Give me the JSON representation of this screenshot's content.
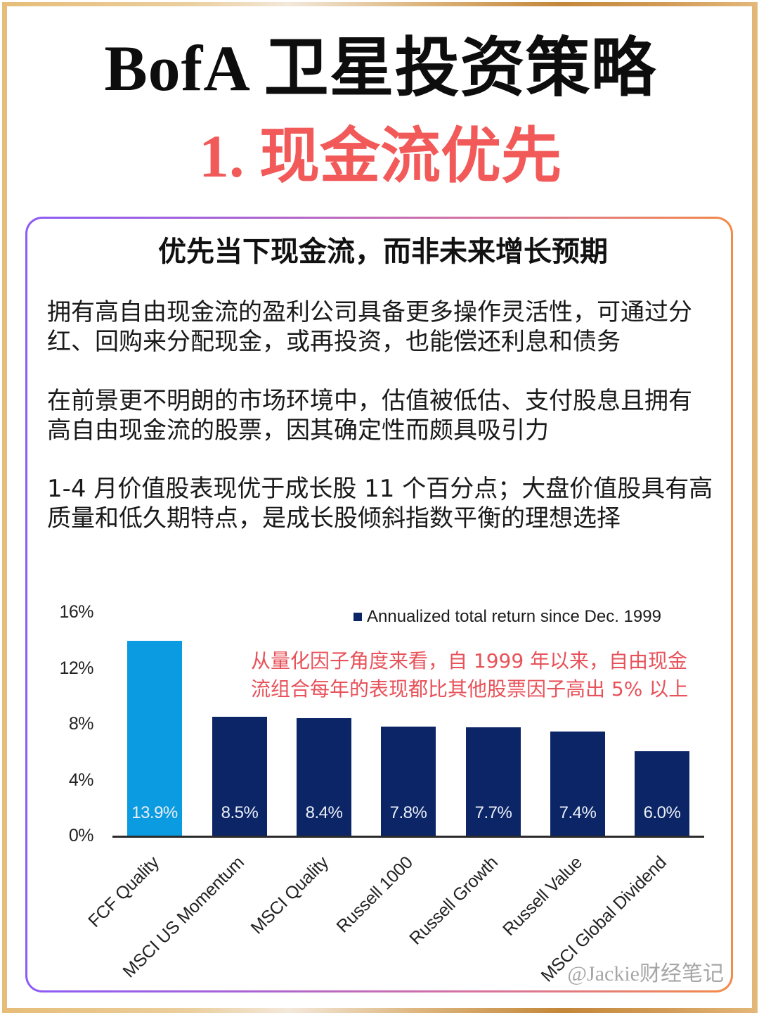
{
  "header": {
    "title": "BofA 卫星投资策略",
    "subtitle": "1. 现金流优先"
  },
  "card": {
    "heading": "优先当下现金流，而非未来增长预期",
    "paragraphs": [
      {
        "lines": [
          "拥有高自由现金流的盈利公司具备更多操作灵活性，可通过分",
          "红、回购来分配现金，或再投资，也能偿还利息和债务"
        ]
      },
      {
        "lines": [
          "在前景更不明朗的市场环境中，估值被低估、支付股息且拥有",
          "高自由现金流的股票，因其确定性而颇具吸引力"
        ]
      },
      {
        "lines": [
          "1-4 月价值股表现优于成长股 11 个百分点；大盘价值股具有高",
          "质量和低久期特点，是成长股倾斜指数平衡的理想选择"
        ]
      }
    ],
    "watermark": "@Jackie财经笔记"
  },
  "colors": {
    "title": "#0d0d0d",
    "subtitle": "#f25a5a",
    "annotation": "#e8525a",
    "frame_gold": "#e6bd78",
    "card_border_start": "#8b5cf6",
    "card_border_end": "#f28a48"
  },
  "chart_data": {
    "type": "bar",
    "title": "",
    "xlabel": "",
    "ylabel": "",
    "categories": [
      "FCF Quality",
      "MSCI US Momentum",
      "MSCI Quality",
      "Russell 1000",
      "Russell Growth",
      "Russell Value",
      "MSCI Global Dividend"
    ],
    "values": [
      13.9,
      8.5,
      8.4,
      7.8,
      7.7,
      7.4,
      6.0
    ],
    "value_labels": [
      "13.9%",
      "8.5%",
      "8.4%",
      "7.8%",
      "7.7%",
      "7.4%",
      "6.0%"
    ],
    "series": [
      {
        "name": "Annualized total return since Dec. 1999",
        "values": [
          13.9,
          8.5,
          8.4,
          7.8,
          7.7,
          7.4,
          6.0
        ]
      }
    ],
    "legend": [
      "Annualized total return since Dec. 1999"
    ],
    "legend_position": "top-right",
    "yticks": [
      "16%",
      "12%",
      "8%",
      "4%",
      "0%"
    ],
    "ylim": [
      0,
      16
    ],
    "grid": false,
    "bar_colors": [
      "#0a9be0",
      "#0b2566",
      "#0b2566",
      "#0b2566",
      "#0b2566",
      "#0b2566",
      "#0b2566"
    ],
    "annotation": [
      "从量化因子角度来看，自 1999 年以来，自由现金",
      "流组合每年的表现都比其他股票因子高出 5% 以上"
    ]
  }
}
